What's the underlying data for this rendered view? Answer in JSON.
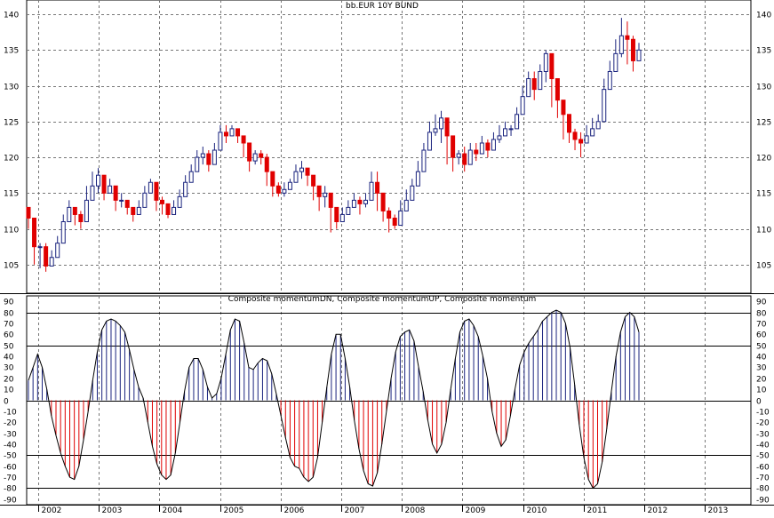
{
  "chart_data": [
    {
      "type": "candlestick",
      "title": "bb.EUR 10Y BUND",
      "ylim": [
        101,
        142
      ],
      "yticks": [
        105,
        110,
        115,
        120,
        125,
        130,
        135,
        140
      ],
      "x_labels": [
        "2002",
        "2003",
        "2004",
        "2005",
        "2006",
        "2007",
        "2008",
        "2009",
        "2010",
        "2011",
        "2012",
        "2013"
      ],
      "up_color": "#1a237e",
      "down_color": "#e00000",
      "closes": [
        111.5,
        107.5,
        107.5,
        104.8,
        106,
        108,
        111,
        113,
        112,
        111,
        114,
        116,
        117.5,
        115,
        116,
        114,
        114,
        113,
        112,
        113,
        115,
        116.5,
        114,
        113.5,
        112,
        113,
        114.5,
        116.5,
        118,
        120,
        120.5,
        119,
        121,
        123.5,
        123,
        124,
        123,
        122,
        119.5,
        120.5,
        120,
        118,
        116,
        115,
        115.5,
        116.5,
        118,
        118.5,
        117.5,
        116,
        114.5,
        115,
        113,
        111,
        112,
        113,
        114,
        113.5,
        114,
        116.5,
        115,
        112.5,
        111.5,
        110.5,
        112.5,
        114,
        116,
        118,
        121,
        123.5,
        124,
        125.5,
        123,
        120,
        120.5,
        119,
        121,
        120.5,
        122,
        121,
        122.5,
        123,
        124,
        124,
        126,
        128.5,
        131,
        129.5,
        132,
        134.5,
        131,
        128,
        126,
        123.5,
        122.5,
        122,
        123,
        124,
        125,
        129.5,
        132,
        134.5,
        137,
        136.5,
        133.5,
        135
      ],
      "lows": [
        110,
        105,
        104.5,
        104,
        105,
        107,
        109.5,
        111,
        110.5,
        110,
        112.5,
        114,
        115,
        114,
        115,
        112.5,
        113,
        112,
        111,
        112,
        114,
        115,
        112.5,
        112,
        111.5,
        112,
        113.5,
        115.5,
        117,
        118,
        119,
        118,
        120,
        122,
        122,
        123,
        122,
        120,
        118,
        119,
        119,
        116,
        114.5,
        114.5,
        114.5,
        115.5,
        117,
        117,
        116,
        114,
        112.5,
        113,
        109.5,
        110,
        111,
        112,
        113,
        112,
        113,
        114.5,
        112.5,
        111,
        109.5,
        110,
        111.5,
        113,
        115,
        117,
        120,
        122,
        123,
        122,
        119,
        118,
        119,
        118,
        120,
        119.5,
        121,
        120,
        121.5,
        122,
        123,
        123,
        125,
        127.5,
        129.5,
        128,
        131,
        130.5,
        127,
        125.5,
        122.5,
        122,
        121,
        120,
        122.5,
        123,
        124,
        128.5,
        130.5,
        133,
        134,
        133,
        132,
        134
      ],
      "highs": [
        113,
        111.5,
        108,
        108,
        107,
        109,
        112,
        114,
        113,
        112.5,
        116,
        118,
        118.5,
        116.5,
        117,
        114.5,
        115,
        114,
        113,
        114,
        116,
        117,
        116.5,
        114.5,
        113,
        114,
        115.5,
        117.5,
        119,
        121,
        121.5,
        121,
        122,
        124.5,
        124.5,
        124.5,
        124,
        123,
        122,
        121,
        121,
        120.5,
        118,
        116.5,
        116.5,
        117,
        119,
        119.5,
        118.5,
        117.5,
        116,
        116,
        115,
        112,
        113,
        114,
        115,
        114.5,
        115,
        118,
        118,
        115,
        113,
        112,
        114,
        115.5,
        117,
        119.5,
        122,
        125,
        126,
        126.5,
        125.5,
        123,
        121,
        121.5,
        122,
        122,
        123,
        122.5,
        123.5,
        124.5,
        125,
        124.5,
        127,
        130,
        132,
        132,
        133,
        135,
        134.5,
        131,
        128,
        126,
        124,
        123.5,
        124.5,
        125.5,
        126,
        131,
        133.5,
        136.5,
        139.5,
        139,
        137,
        136
      ]
    },
    {
      "type": "bar",
      "title": "Composite momentumDN, Composite momentumUP, Composite momentum",
      "ylim": [
        -95,
        95
      ],
      "yticks": [
        90,
        80,
        70,
        60,
        50,
        40,
        30,
        20,
        10,
        0,
        -10,
        -20,
        -30,
        -40,
        -50,
        -60,
        -70,
        -80,
        -90
      ],
      "hlines": [
        80,
        50,
        0,
        -50,
        -80
      ],
      "up_color": "#1a237e",
      "down_color": "#e00000",
      "values": [
        18,
        30,
        42,
        30,
        10,
        -14,
        -32,
        -48,
        -60,
        -70,
        -72,
        -60,
        -36,
        -10,
        18,
        44,
        64,
        72,
        74,
        72,
        68,
        62,
        46,
        28,
        12,
        2,
        -20,
        -42,
        -58,
        -68,
        -72,
        -68,
        -48,
        -20,
        8,
        30,
        38,
        38,
        28,
        12,
        2,
        6,
        20,
        42,
        64,
        74,
        72,
        52,
        30,
        28,
        34,
        38,
        36,
        24,
        6,
        -14,
        -34,
        -52,
        -60,
        -62,
        -70,
        -74,
        -70,
        -52,
        -20,
        12,
        42,
        60,
        60,
        38,
        12,
        -18,
        -44,
        -64,
        -76,
        -78,
        -66,
        -40,
        -10,
        20,
        44,
        58,
        62,
        64,
        54,
        30,
        8,
        -18,
        -40,
        -48,
        -40,
        -20,
        10,
        38,
        62,
        72,
        74,
        68,
        58,
        40,
        20,
        -10,
        -30,
        -42,
        -36,
        -14,
        10,
        32,
        44,
        52,
        58,
        64,
        72,
        76,
        80,
        82,
        80,
        70,
        48,
        14,
        -22,
        -52,
        -72,
        -80,
        -76,
        -56,
        -26,
        8,
        40,
        62,
        76,
        80,
        76,
        62
      ]
    }
  ]
}
